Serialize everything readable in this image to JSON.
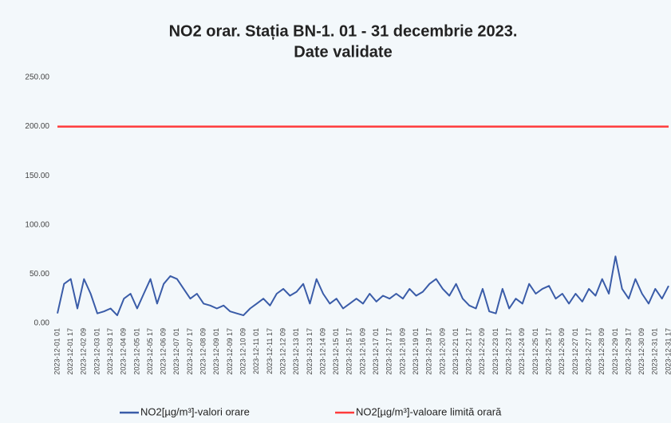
{
  "chart_data": {
    "type": "line",
    "title": "NO2 orar. Stația BN-1. 01 - 31 decembrie 2023.",
    "subtitle": "Date validate",
    "categories": [
      "2023-12-01 01",
      null,
      "2023-12-01 17",
      null,
      "2023-12-02 09",
      null,
      "2023-12-03 01",
      null,
      "2023-12-03 17",
      null,
      "2023-12-04 09",
      null,
      "2023-12-05 01",
      null,
      "2023-12-05 17",
      null,
      "2023-12-06 09",
      null,
      "2023-12-07 01",
      null,
      "2023-12-07 17",
      null,
      "2023-12-08 09",
      null,
      "2023-12-09 01",
      null,
      "2023-12-09 17",
      null,
      "2023-12-10 09",
      null,
      "2023-12-11 01",
      null,
      "2023-12-11 17",
      null,
      "2023-12-12 09",
      null,
      "2023-12-13 01",
      null,
      "2023-12-13 17",
      null,
      "2023-12-14 09",
      null,
      "2023-12-15 01",
      null,
      "2023-12-15 17",
      null,
      "2023-12-16 09",
      null,
      "2023-12-17 01",
      null,
      "2023-12-17 17",
      null,
      "2023-12-18 09",
      null,
      "2023-12-19 01",
      null,
      "2023-12-19 17",
      null,
      "2023-12-20 09",
      null,
      "2023-12-21 01",
      null,
      "2023-12-21 17",
      null,
      "2023-12-22 09",
      null,
      "2023-12-23 01",
      null,
      "2023-12-23 17",
      null,
      "2023-12-24 09",
      null,
      "2023-12-25 01",
      null,
      "2023-12-25 17",
      null,
      "2023-12-26 09",
      null,
      "2023-12-27 01",
      null,
      "2023-12-27 17",
      null,
      "2023-12-28 09",
      null,
      "2023-12-29 01",
      null,
      "2023-12-29 17",
      null,
      "2023-12-30 09",
      null,
      "2023-12-31 01",
      null,
      "2023-12-31 17"
    ],
    "series": [
      {
        "name": "NO2[µg/m³]-valori orare",
        "color": "#3a5ca8",
        "values": [
          10,
          40,
          45,
          15,
          45,
          30,
          10,
          12,
          15,
          8,
          25,
          30,
          15,
          30,
          45,
          20,
          40,
          48,
          45,
          35,
          25,
          30,
          20,
          18,
          15,
          18,
          12,
          10,
          8,
          15,
          20,
          25,
          18,
          30,
          35,
          28,
          32,
          40,
          20,
          45,
          30,
          20,
          25,
          15,
          20,
          25,
          20,
          30,
          22,
          28,
          25,
          30,
          25,
          35,
          28,
          32,
          40,
          45,
          35,
          28,
          40,
          25,
          18,
          15,
          35,
          12,
          10,
          35,
          15,
          25,
          20,
          40,
          30,
          35,
          38,
          25,
          30,
          20,
          30,
          22,
          35,
          28,
          45,
          30,
          68,
          35,
          25,
          45,
          30,
          20,
          35,
          25,
          38
        ]
      },
      {
        "name": "NO2[µg/m³]-valoare limită orară",
        "color": "#ff3b3b",
        "values": [
          200,
          200,
          200,
          200,
          200,
          200,
          200,
          200,
          200,
          200,
          200,
          200,
          200,
          200,
          200,
          200,
          200,
          200,
          200,
          200,
          200,
          200,
          200,
          200,
          200,
          200,
          200,
          200,
          200,
          200,
          200,
          200,
          200,
          200,
          200,
          200,
          200,
          200,
          200,
          200,
          200,
          200,
          200,
          200,
          200,
          200,
          200,
          200,
          200,
          200,
          200,
          200,
          200,
          200,
          200,
          200,
          200,
          200,
          200,
          200,
          200,
          200,
          200,
          200,
          200,
          200,
          200,
          200,
          200,
          200,
          200,
          200,
          200,
          200,
          200,
          200,
          200,
          200,
          200,
          200,
          200,
          200,
          200,
          200,
          200,
          200,
          200,
          200,
          200,
          200,
          200,
          200,
          200
        ]
      }
    ],
    "ylim": [
      0,
      250
    ],
    "yticks": [
      {
        "value": 0,
        "label": "0.00"
      },
      {
        "value": 50,
        "label": "50.00"
      },
      {
        "value": 100,
        "label": "100.00"
      },
      {
        "value": 150,
        "label": "150.00"
      },
      {
        "value": 200,
        "label": "200.00"
      },
      {
        "value": 250,
        "label": "250.00"
      }
    ],
    "legend": "bottom"
  }
}
